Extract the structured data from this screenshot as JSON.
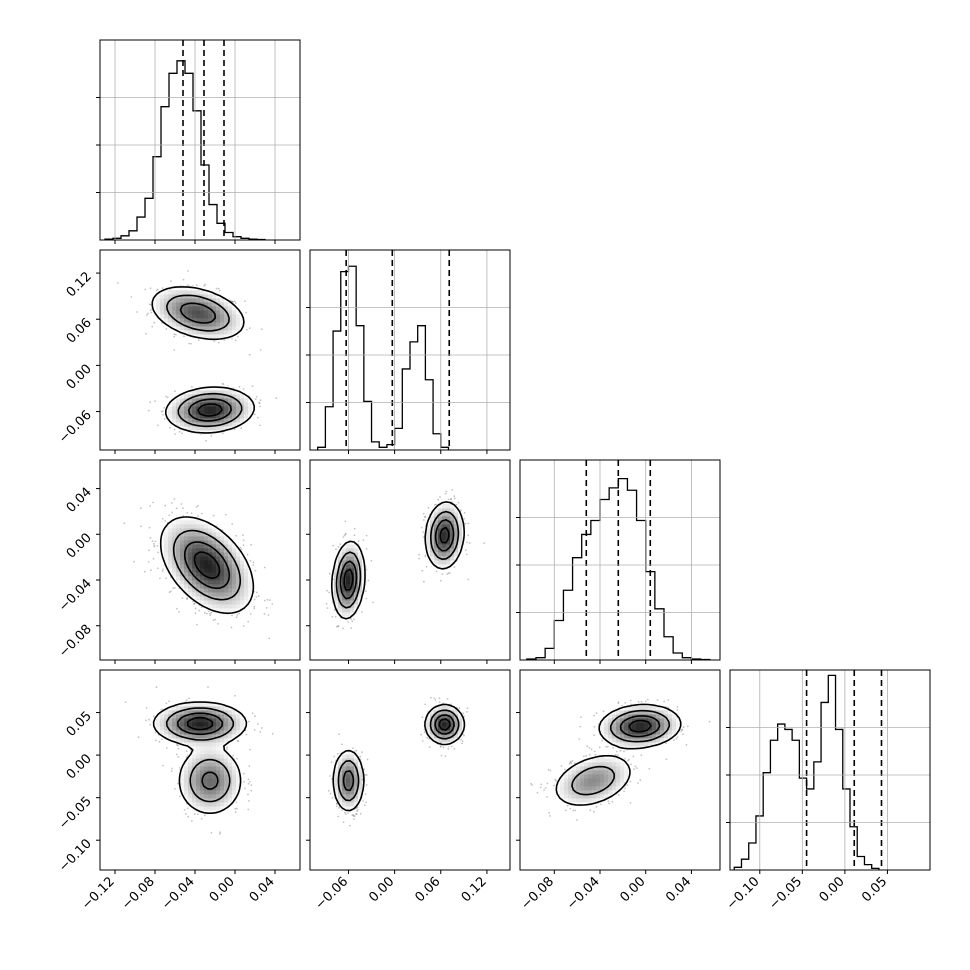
{
  "chart_data": {
    "type": "corner",
    "dimensions": 4,
    "style": {
      "line_color": "#000000",
      "grid_color": "#b0b0b0",
      "point_color": "#555555",
      "background": "#ffffff",
      "grid": true
    },
    "params": [
      {
        "range": [
          -0.135,
          0.065
        ],
        "ticks": [
          -0.12,
          -0.08,
          -0.04,
          0.0,
          0.04
        ],
        "tick_labels": [
          "−0.12",
          "−0.08",
          "−0.04",
          "0.00",
          "0.04"
        ]
      },
      {
        "range": [
          -0.11,
          0.15
        ],
        "ticks": [
          -0.06,
          0.0,
          0.06,
          0.12
        ],
        "tick_labels": [
          "−0.06",
          "0.00",
          "0.06",
          "0.12"
        ]
      },
      {
        "range": [
          -0.11,
          0.065
        ],
        "ticks": [
          -0.08,
          -0.04,
          0.0,
          0.04
        ],
        "tick_labels": [
          "−0.08",
          "−0.04",
          "0.00",
          "0.04"
        ]
      },
      {
        "range": [
          -0.135,
          0.1
        ],
        "ticks": [
          -0.1,
          -0.05,
          0.0,
          0.05
        ],
        "tick_labels": [
          "−0.10",
          "−0.05",
          "0.00",
          "0.05"
        ]
      }
    ],
    "histograms": [
      {
        "param": 0,
        "bin_start": -0.13,
        "bin_width": 0.008,
        "counts": [
          2,
          4,
          10,
          22,
          55,
          100,
          200,
          320,
          400,
          430,
          400,
          310,
          180,
          85,
          40,
          18,
          8,
          4,
          2,
          1
        ],
        "ymax": 480,
        "quantiles": [
          -0.052,
          -0.031,
          -0.011
        ]
      },
      {
        "param": 1,
        "bin_start": -0.1,
        "bin_width": 0.01,
        "counts": [
          5,
          80,
          220,
          330,
          340,
          230,
          90,
          15,
          5,
          10,
          40,
          150,
          200,
          230,
          130,
          30,
          5
        ],
        "ymax": 370,
        "quantiles": [
          -0.063,
          -0.003,
          0.071
        ]
      },
      {
        "param": 2,
        "bin_start": -0.104,
        "bin_width": 0.008,
        "counts": [
          2,
          5,
          25,
          85,
          150,
          220,
          270,
          300,
          345,
          370,
          390,
          365,
          300,
          190,
          110,
          50,
          15,
          5,
          2,
          1
        ],
        "ymax": 430,
        "quantiles": [
          -0.052,
          -0.024,
          0.004
        ]
      },
      {
        "param": 3,
        "bin_start": -0.13,
        "bin_width": 0.0085,
        "counts": [
          5,
          20,
          50,
          100,
          180,
          240,
          270,
          260,
          240,
          170,
          150,
          200,
          310,
          360,
          260,
          150,
          80,
          25,
          10,
          3
        ],
        "ymax": 370,
        "quantiles": [
          -0.045,
          0.011,
          0.043
        ]
      }
    ],
    "joint": [
      {
        "x": 0,
        "y": 1,
        "modes": [
          {
            "cx": -0.037,
            "cy": 0.068,
            "sx": 0.023,
            "sy": 0.017,
            "rho": -0.35,
            "w": 0.5
          },
          {
            "cx": -0.025,
            "cy": -0.058,
            "sx": 0.021,
            "sy": 0.014,
            "rho": 0.1,
            "w": 0.5
          }
        ]
      },
      {
        "x": 0,
        "y": 2,
        "modes": [
          {
            "cx": -0.028,
            "cy": -0.027,
            "sx": 0.022,
            "sy": 0.02,
            "rho": -0.45,
            "w": 1.0
          }
        ]
      },
      {
        "x": 0,
        "y": 3,
        "modes": [
          {
            "cx": -0.035,
            "cy": 0.037,
            "sx": 0.022,
            "sy": 0.012,
            "rho": 0.0,
            "w": 0.55
          },
          {
            "cx": -0.025,
            "cy": -0.03,
            "sx": 0.016,
            "sy": 0.02,
            "rho": 0.0,
            "w": 0.45
          }
        ]
      },
      {
        "x": 1,
        "y": 2,
        "modes": [
          {
            "cx": -0.06,
            "cy": -0.04,
            "sx": 0.01,
            "sy": 0.016,
            "rho": 0.15,
            "w": 0.5
          },
          {
            "cx": 0.065,
            "cy": -0.001,
            "sx": 0.012,
            "sy": 0.014,
            "rho": 0.1,
            "w": 0.5
          }
        ]
      },
      {
        "x": 1,
        "y": 3,
        "modes": [
          {
            "cx": -0.06,
            "cy": -0.03,
            "sx": 0.01,
            "sy": 0.018,
            "rho": 0.0,
            "w": 0.5
          },
          {
            "cx": 0.065,
            "cy": 0.036,
            "sx": 0.012,
            "sy": 0.011,
            "rho": 0.0,
            "w": 0.5
          }
        ]
      },
      {
        "x": 2,
        "y": 3,
        "modes": [
          {
            "cx": -0.046,
            "cy": -0.03,
            "sx": 0.018,
            "sy": 0.016,
            "rho": 0.35,
            "w": 0.42
          },
          {
            "cx": -0.005,
            "cy": 0.034,
            "sx": 0.017,
            "sy": 0.012,
            "rho": 0.1,
            "w": 0.58
          }
        ]
      }
    ]
  }
}
